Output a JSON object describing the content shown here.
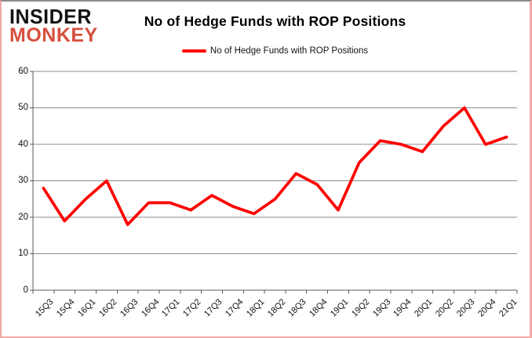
{
  "logo": {
    "line1": "INSIDER",
    "line2": "MONKEY"
  },
  "header": {
    "title": "No of Hedge Funds with ROP Positions"
  },
  "legend": {
    "label": "No of Hedge Funds with ROP Positions"
  },
  "colors": {
    "series_line": "#ff0000",
    "logo_text": "#121212",
    "logo_accent": "#d5503c",
    "gridline": "#8c8c8c",
    "axis": "#595959",
    "page_border": "#f0a8a3",
    "background": "#ffffff"
  },
  "chart_data": {
    "type": "line",
    "title": "No of Hedge Funds with ROP Positions",
    "xlabel": "",
    "ylabel": "",
    "categories": [
      "15Q3",
      "15Q4",
      "16Q1",
      "16Q2",
      "16Q3",
      "16Q4",
      "17Q1",
      "17Q2",
      "17Q3",
      "17Q4",
      "18Q1",
      "18Q2",
      "18Q3",
      "18Q4",
      "19Q1",
      "19Q2",
      "19Q3",
      "19Q4",
      "20Q1",
      "20Q2",
      "20Q3",
      "20Q4",
      "21Q1"
    ],
    "series": [
      {
        "name": "No of Hedge Funds with ROP Positions",
        "color": "#ff0000",
        "values": [
          28,
          19,
          25,
          30,
          18,
          24,
          24,
          22,
          26,
          23,
          21,
          25,
          32,
          29,
          22,
          35,
          41,
          40,
          38,
          45,
          50,
          40,
          42
        ]
      }
    ],
    "ylim": [
      0,
      60
    ],
    "yticks": [
      0,
      10,
      20,
      30,
      40,
      50,
      60
    ],
    "grid": true,
    "legend_position": "top"
  }
}
